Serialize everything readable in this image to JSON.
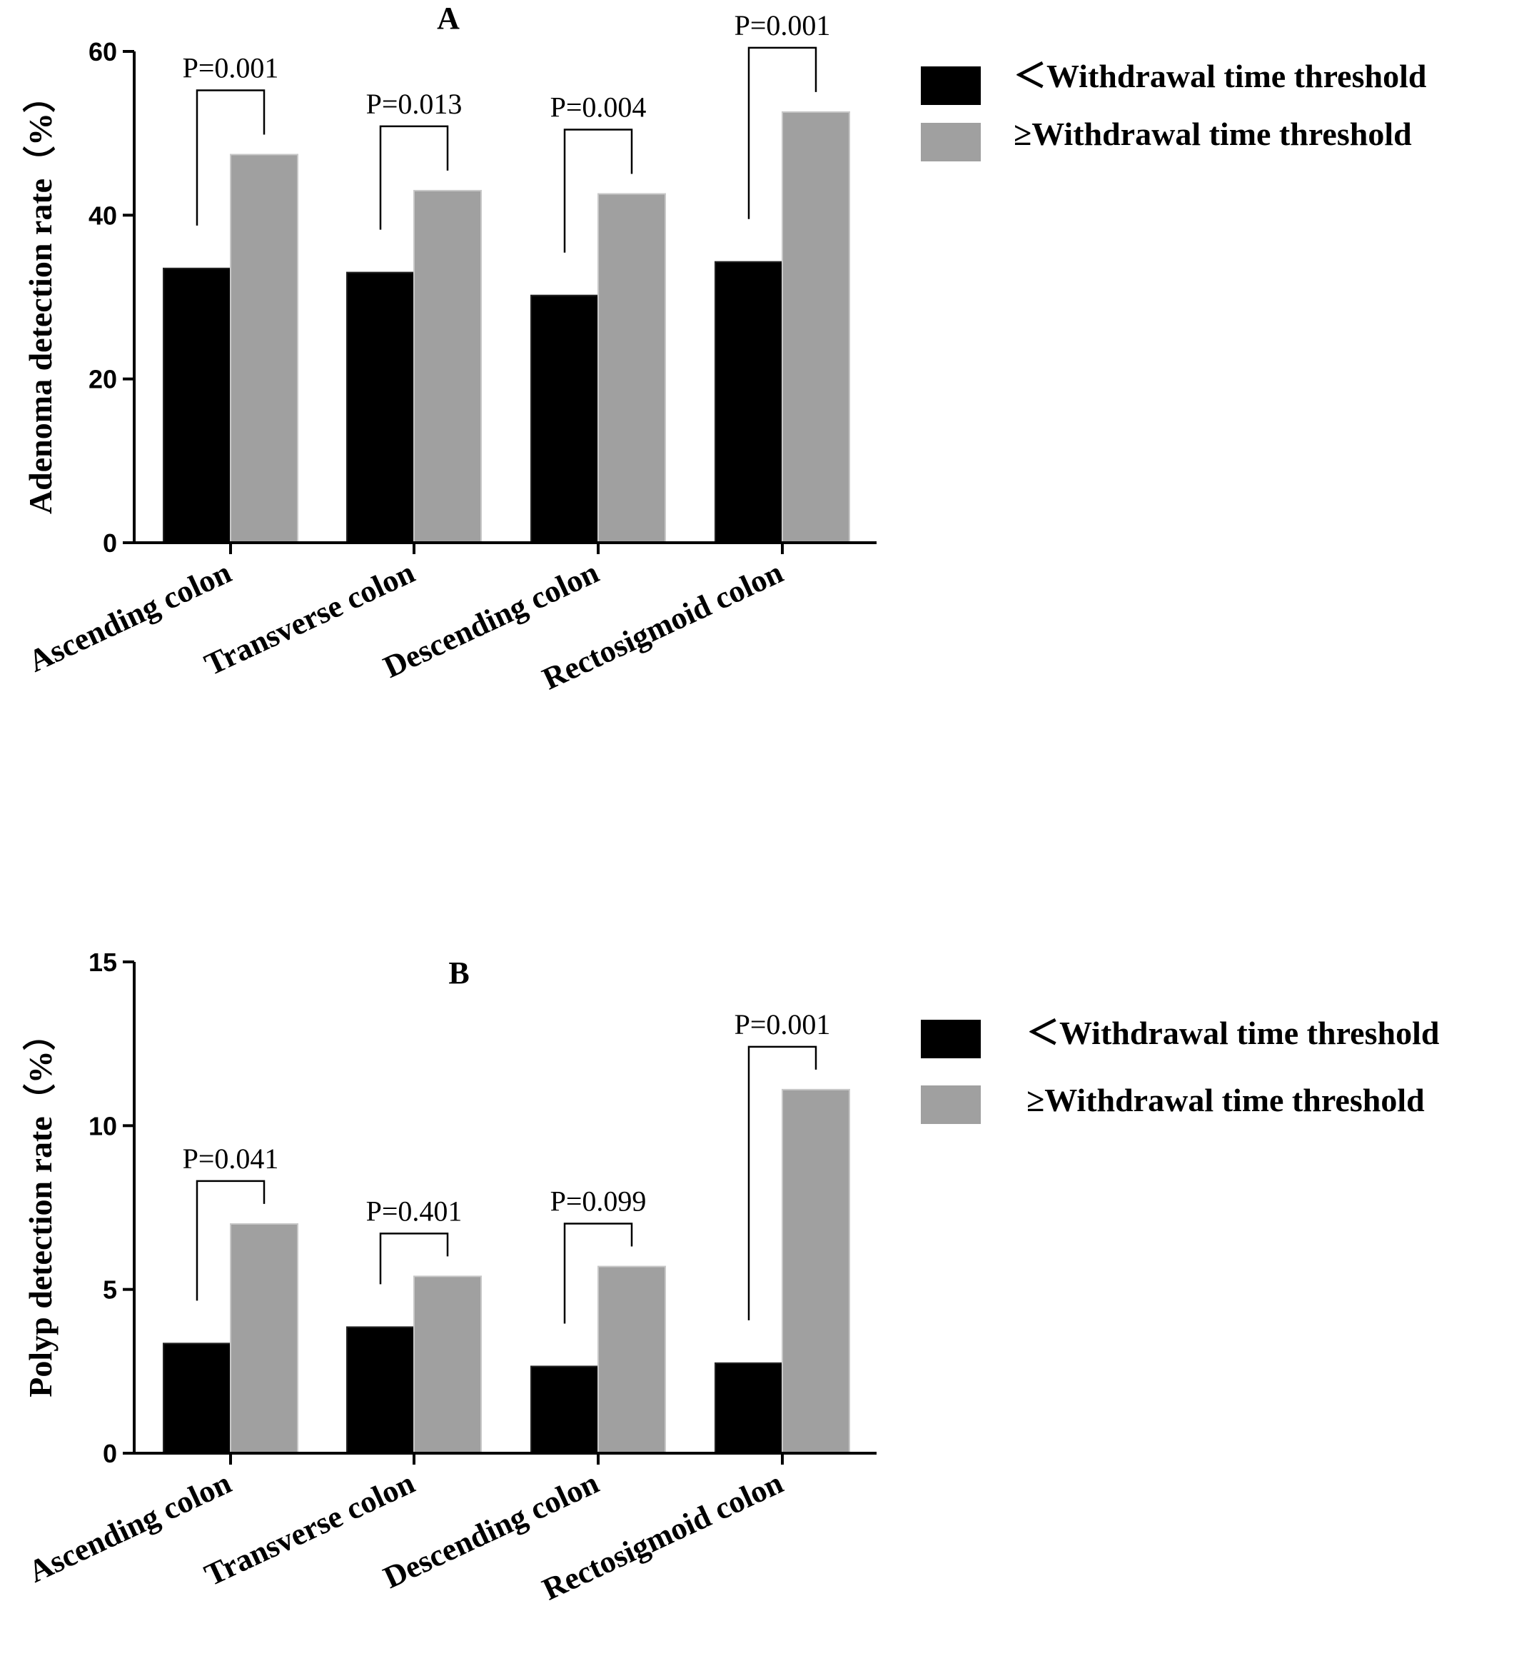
{
  "colors": {
    "below": "#000000",
    "above": "#a0a0a0",
    "bar_outline": "#c8c8c8"
  },
  "legend_labels": [
    "＜Withdrawal time threshold",
    "≥Withdrawal time threshold"
  ],
  "chart_data": [
    {
      "type": "bar",
      "panel_label": "A",
      "ylabel": "Adenoma detection rate（%）",
      "ylim": [
        0,
        60
      ],
      "yticks": [
        0,
        20,
        40,
        60
      ],
      "categories": [
        "Ascending colon",
        "Transverse colon",
        "Descending colon",
        "Rectosigmoid colon"
      ],
      "series": [
        {
          "name": "＜Withdrawal time threshold",
          "values": [
            33.5,
            33.0,
            30.2,
            34.3
          ]
        },
        {
          "name": "≥Withdrawal time threshold",
          "values": [
            47.4,
            43.0,
            42.6,
            52.6
          ]
        }
      ],
      "p_values": [
        "P=0.001",
        "P=0.013",
        "P=0.004",
        "P=0.001"
      ],
      "legend": "right"
    },
    {
      "type": "bar",
      "panel_label": "B",
      "ylabel": "Polyp detection rate（%）",
      "ylim": [
        0,
        15
      ],
      "yticks": [
        0,
        5,
        10,
        15
      ],
      "categories": [
        "Ascending colon",
        "Transverse colon",
        "Descending colon",
        "Rectosigmoid colon"
      ],
      "series": [
        {
          "name": "＜Withdrawal time threshold",
          "values": [
            3.35,
            3.85,
            2.65,
            2.75
          ]
        },
        {
          "name": "≥Withdrawal time threshold",
          "values": [
            7.0,
            5.4,
            5.7,
            11.1
          ]
        }
      ],
      "p_values": [
        "P=0.041",
        "P=0.401",
        "P=0.099",
        "P=0.001"
      ],
      "legend": "right"
    }
  ]
}
